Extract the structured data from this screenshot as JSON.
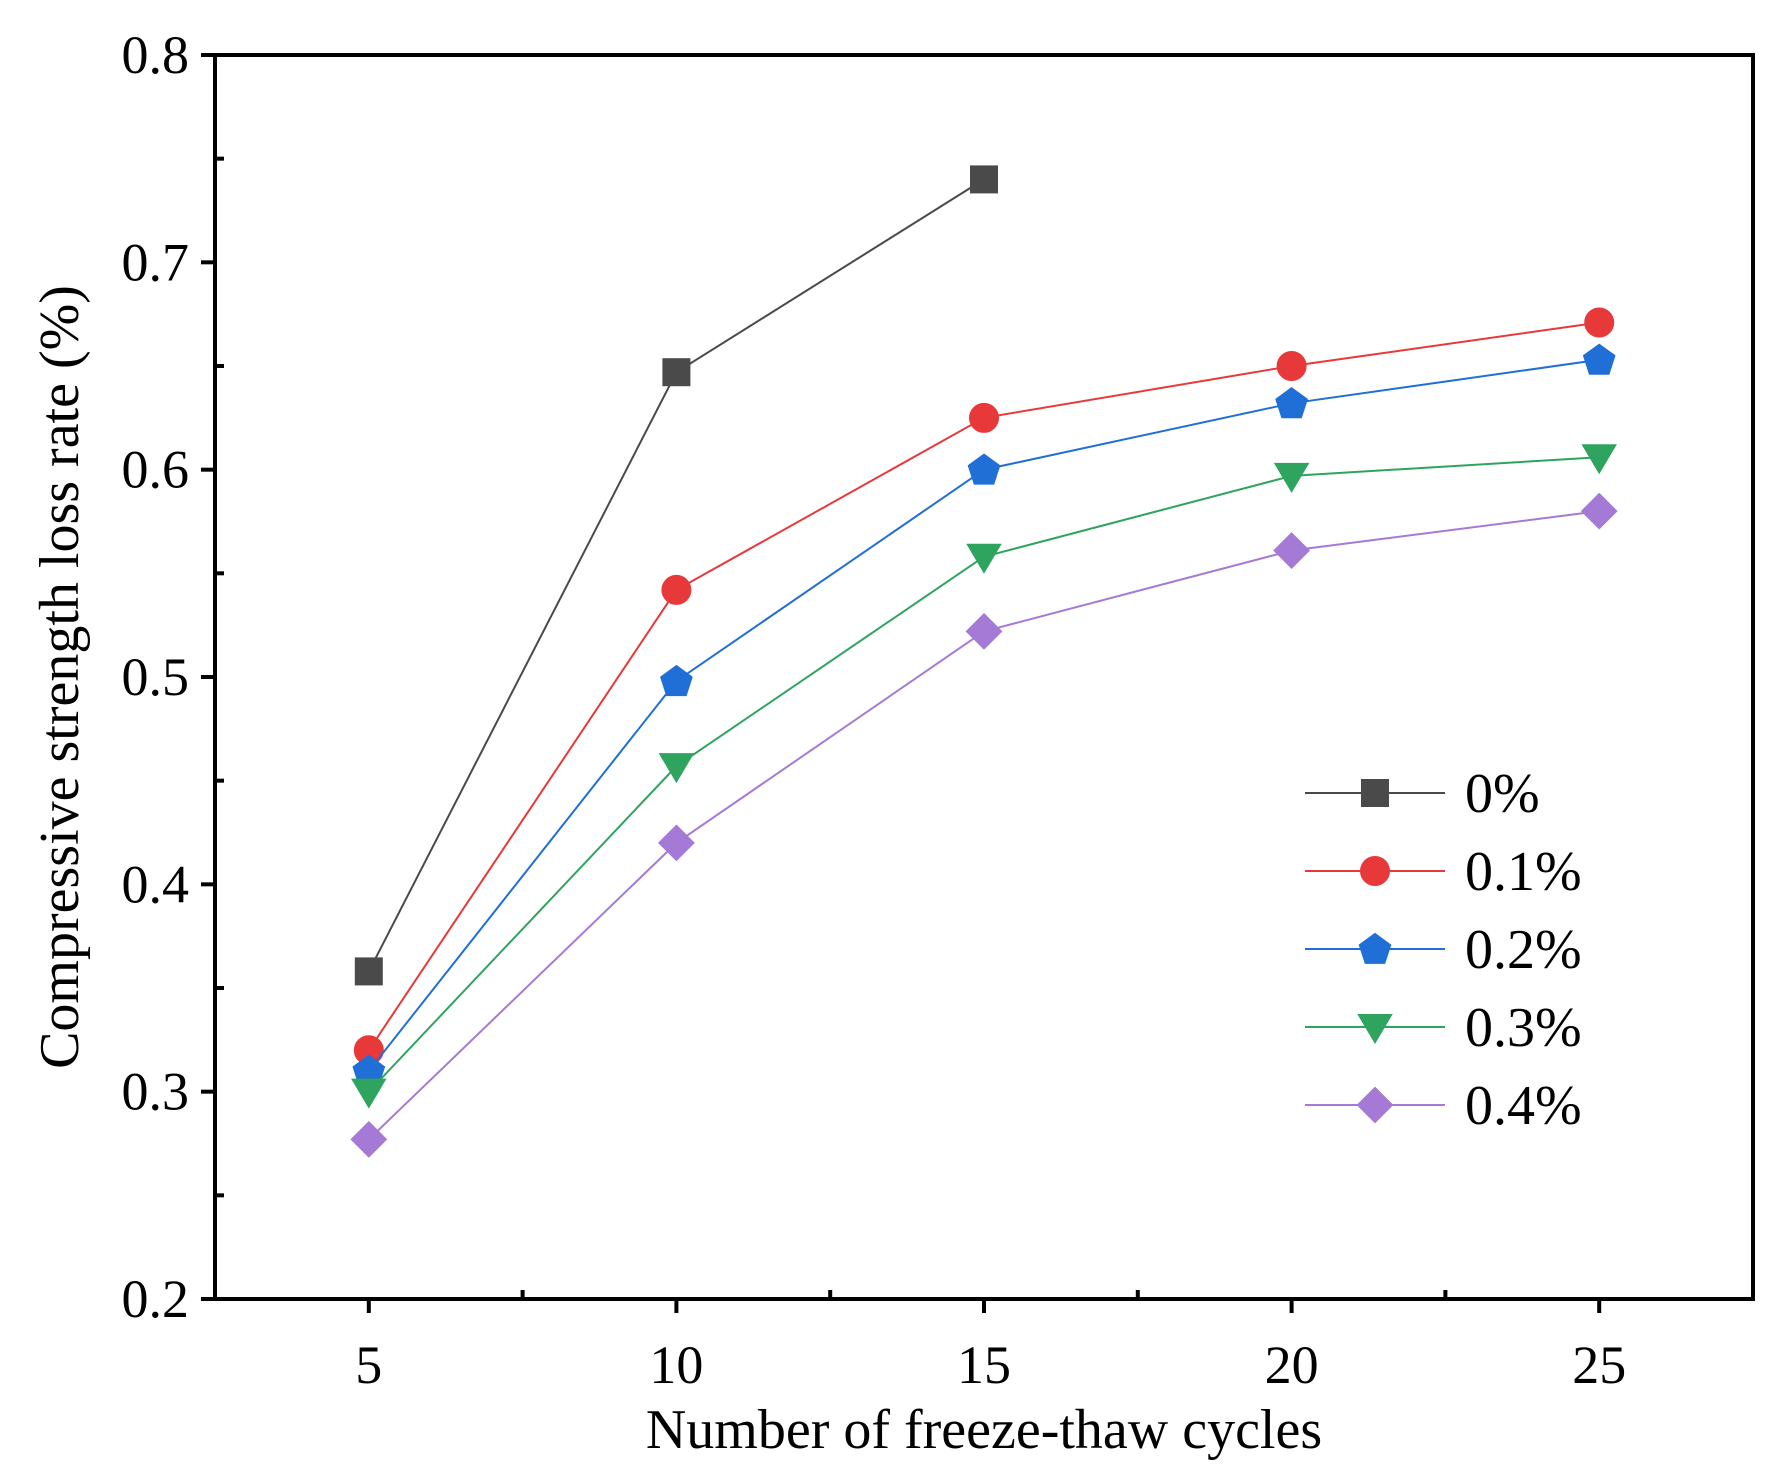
{
  "chart_data": {
    "type": "line",
    "title": "",
    "xlabel": "Number of freeze-thaw cycles",
    "ylabel": "Compressive strength loss rate (%)",
    "xlim": [
      2.5,
      27.5
    ],
    "ylim": [
      0.2,
      0.8
    ],
    "x_ticks": [
      5,
      10,
      15,
      20,
      25
    ],
    "x_minor_ticks": [
      7.5,
      12.5,
      17.5,
      22.5
    ],
    "y_ticks": [
      0.2,
      0.3,
      0.4,
      0.5,
      0.6,
      0.7,
      0.8
    ],
    "y_minor_ticks": [
      0.25,
      0.35,
      0.45,
      0.55,
      0.65,
      0.75
    ],
    "x_tick_labels": [
      "5",
      "10",
      "15",
      "20",
      "25"
    ],
    "y_tick_labels": [
      "0.2",
      "0.3",
      "0.4",
      "0.5",
      "0.6",
      "0.7",
      "0.8"
    ],
    "grid": false,
    "legend_position": "right, lower-middle",
    "series": [
      {
        "name": "0%",
        "marker": "square",
        "color": "#4a4a4a",
        "x": [
          5,
          10,
          15
        ],
        "values": [
          0.358,
          0.647,
          0.74
        ]
      },
      {
        "name": "0.1%",
        "marker": "circle",
        "color": "#e8393a",
        "x": [
          5,
          10,
          15,
          20,
          25
        ],
        "values": [
          0.32,
          0.542,
          0.625,
          0.65,
          0.671
        ]
      },
      {
        "name": "0.2%",
        "marker": "pentagon",
        "color": "#1f6fd6",
        "x": [
          5,
          10,
          15,
          20,
          25
        ],
        "values": [
          0.31,
          0.498,
          0.6,
          0.632,
          0.653
        ]
      },
      {
        "name": "0.3%",
        "marker": "triangle-down",
        "color": "#2ea45f",
        "x": [
          5,
          10,
          15,
          20,
          25
        ],
        "values": [
          0.3,
          0.457,
          0.558,
          0.597,
          0.606
        ]
      },
      {
        "name": "0.4%",
        "marker": "diamond",
        "color": "#a57ad6",
        "x": [
          5,
          10,
          15,
          20,
          25
        ],
        "values": [
          0.277,
          0.42,
          0.522,
          0.561,
          0.58
        ]
      }
    ]
  }
}
